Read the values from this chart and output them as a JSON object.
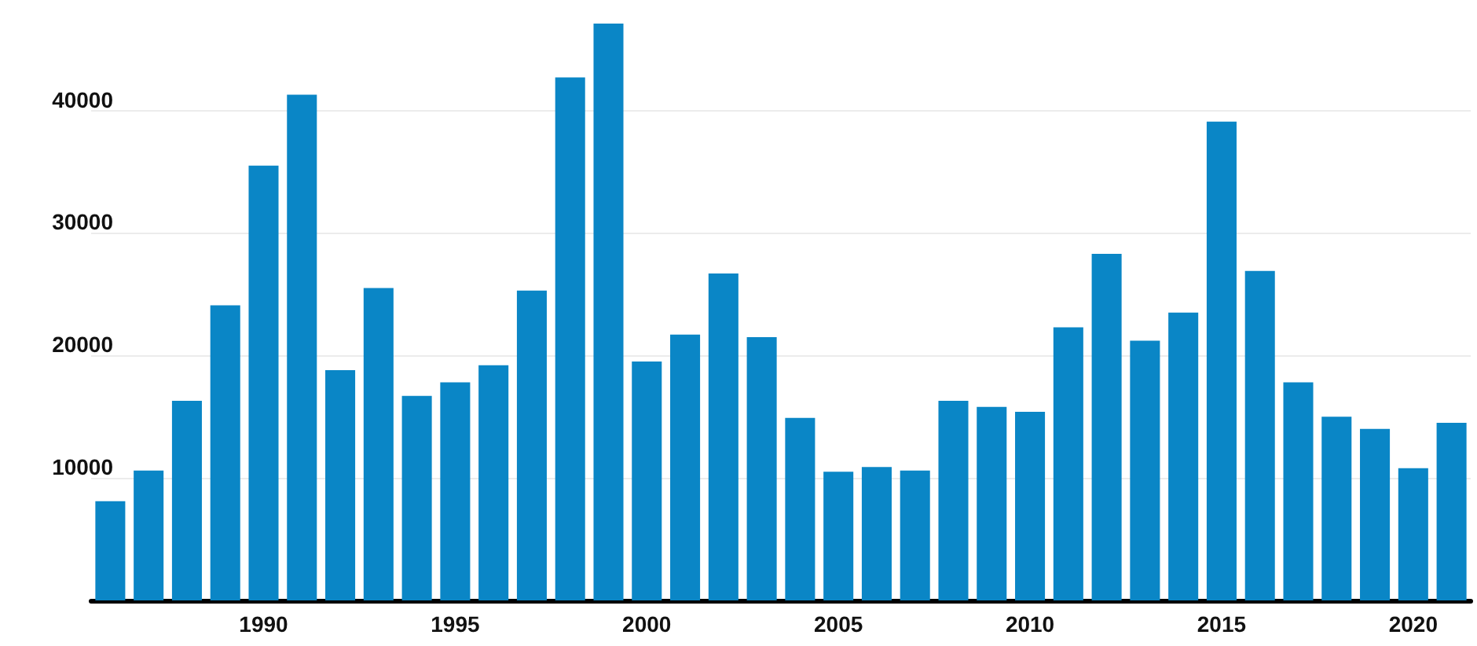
{
  "chart_data": {
    "type": "bar",
    "categories": [
      null,
      null,
      null,
      null,
      "1990",
      null,
      null,
      null,
      null,
      "1995",
      null,
      null,
      null,
      null,
      "2000",
      null,
      null,
      null,
      null,
      "2005",
      null,
      null,
      null,
      null,
      "2010",
      null,
      null,
      null,
      null,
      "2015",
      null,
      null,
      null,
      null,
      "2020",
      null
    ],
    "values": [
      8100,
      10600,
      16300,
      24100,
      35500,
      41300,
      18800,
      25500,
      16700,
      17800,
      19200,
      25300,
      42700,
      47100,
      19500,
      21700,
      26700,
      21500,
      14900,
      10500,
      10900,
      10600,
      16300,
      15800,
      15400,
      22300,
      28300,
      21200,
      23500,
      39100,
      26900,
      17800,
      15000,
      14000,
      10800,
      14500
    ],
    "color": "#0a86c6",
    "ylim": [
      0,
      47100
    ],
    "yticks": [
      {
        "value": 0,
        "label": null
      },
      10000,
      20000,
      30000,
      40000
    ],
    "grid": "y"
  }
}
